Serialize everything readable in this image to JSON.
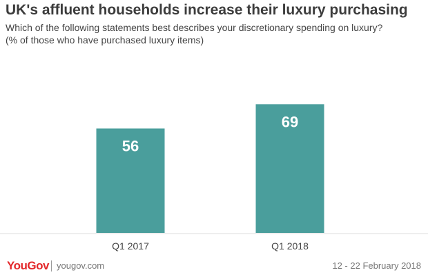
{
  "title": "UK's affluent households increase their luxury purchasing",
  "subtitle_line1": "Which of the following statements best describes your discretionary spending on luxury?",
  "subtitle_line2": "(% of those who have purchased luxury items)",
  "footer": {
    "logo": "YouGov",
    "site": "yougov.com",
    "date": "12 - 22 February 2018"
  },
  "colors": {
    "bar": "#4a9e9c",
    "title": "#3c3c3c",
    "logo": "#e3282b"
  },
  "chart_data": {
    "type": "bar",
    "categories": [
      "Q1 2017",
      "Q1 2018"
    ],
    "values": [
      56,
      69
    ],
    "ylim": [
      0,
      85
    ],
    "grid": false,
    "title": "UK's affluent households increase their luxury purchasing"
  }
}
